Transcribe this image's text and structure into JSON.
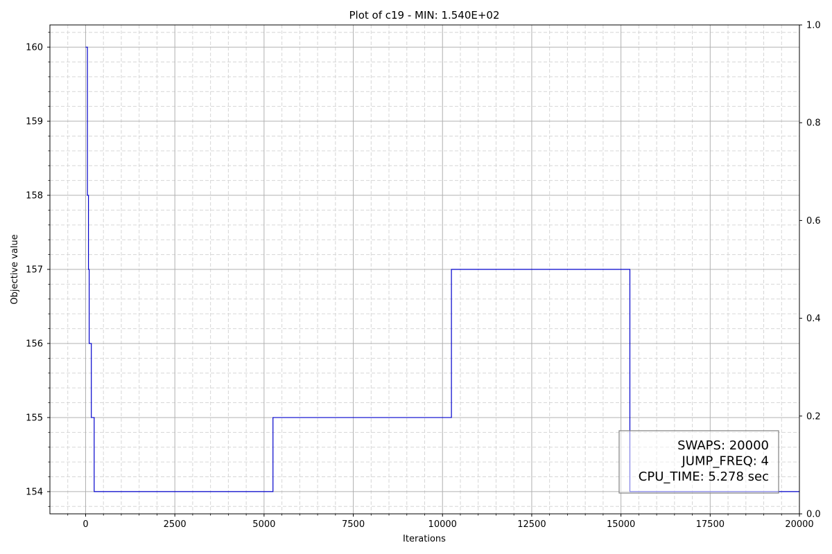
{
  "chart_data": {
    "type": "line",
    "title": "Plot of c19 - MIN: 1.540E+02",
    "xlabel": "Iterations",
    "ylabel": "Objective value",
    "xlim": [
      -1000,
      20000
    ],
    "ylim": [
      153.7,
      160.3
    ],
    "xticks": [
      0,
      2500,
      5000,
      7500,
      10000,
      12500,
      15000,
      17500,
      20000
    ],
    "yticks": [
      154,
      155,
      156,
      157,
      158,
      159,
      160
    ],
    "y2lim": [
      0.0,
      1.0
    ],
    "y2ticks": [
      "0.0",
      "0.2",
      "0.4",
      "0.6",
      "0.8",
      "1.0"
    ],
    "grid": true,
    "minor_grid": true,
    "series": [
      {
        "color": "#0000cc",
        "drawstyle": "steps-post",
        "x": [
          0,
          50,
          80,
          100,
          160,
          240,
          5250,
          10250,
          15250,
          20000
        ],
        "y": [
          160,
          158,
          157,
          156,
          155,
          154,
          155,
          157,
          154,
          154
        ]
      }
    ],
    "annotation": {
      "position": "bottom-right",
      "lines": [
        "SWAPS: 20000",
        "JUMP_FREQ: 4",
        "CPU_TIME: 5.278 sec"
      ]
    }
  }
}
